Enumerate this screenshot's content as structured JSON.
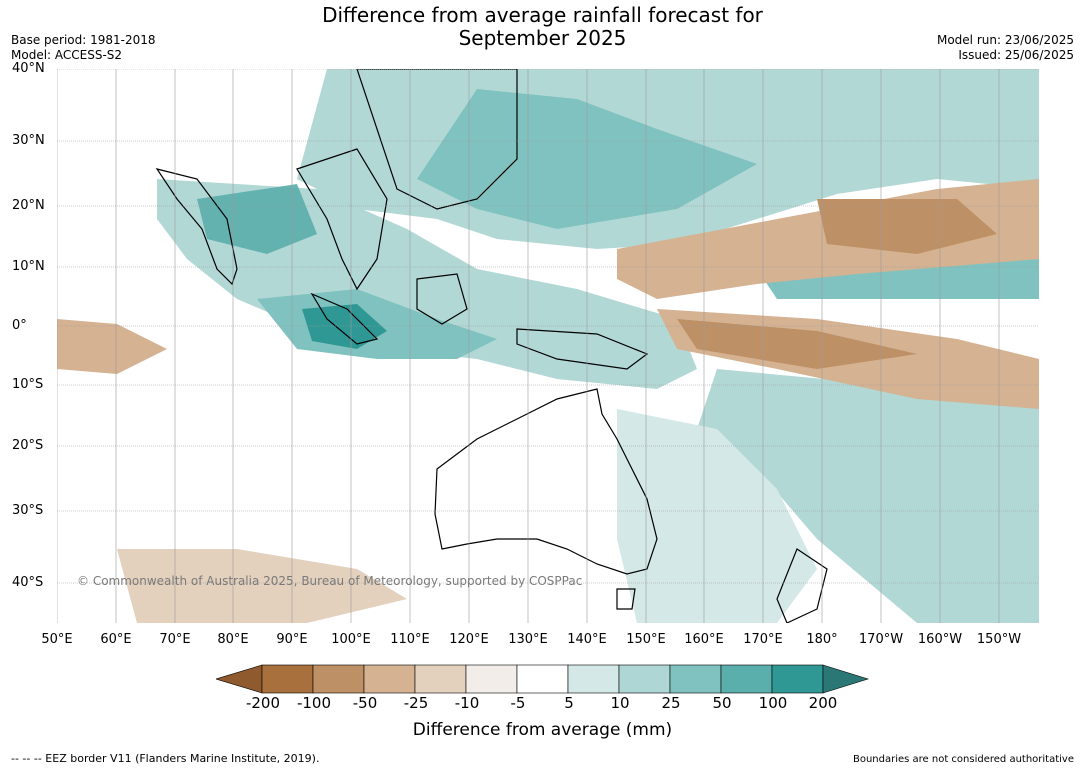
{
  "title_line1": "Difference from average rainfall forecast for",
  "title_line2": "September 2025",
  "base_period": "Base period: 1981-2018",
  "model": "Model: ACCESS-S2",
  "model_run": "Model run: 23/06/2025",
  "issued": "Issued: 25/06/2025",
  "copyright": "© Commonwealth of Australia 2025, Bureau of Meteorology, supported by COSPPac",
  "lat_labels": [
    "40°N",
    "30°N",
    "20°N",
    "10°N",
    "0°",
    "10°S",
    "20°S",
    "30°S",
    "40°S"
  ],
  "lon_labels": [
    "50°E",
    "60°E",
    "70°E",
    "80°E",
    "90°E",
    "100°E",
    "110°E",
    "120°E",
    "130°E",
    "140°E",
    "150°E",
    "160°E",
    "170°E",
    "180°",
    "170°W",
    "160°W",
    "150°W"
  ],
  "legend": {
    "title": "Difference from average (mm)",
    "ticks": [
      "-200",
      "-100",
      "-50",
      "-25",
      "-10",
      "-5",
      "5",
      "10",
      "25",
      "50",
      "100",
      "200"
    ],
    "colors": [
      "#8e5a2e",
      "#a8703c",
      "#be9066",
      "#d4b292",
      "#e3d0bd",
      "#f2ede8",
      "#ffffff",
      "#d4e8e7",
      "#aed6d4",
      "#80c2bf",
      "#5aaeac",
      "#2f9895",
      "#2a7775"
    ]
  },
  "eez_note": "--  --  -- EEZ border V11 (Flanders Marine Institute, 2019).",
  "boundary_note": "Boundaries are not considered authoritative"
}
